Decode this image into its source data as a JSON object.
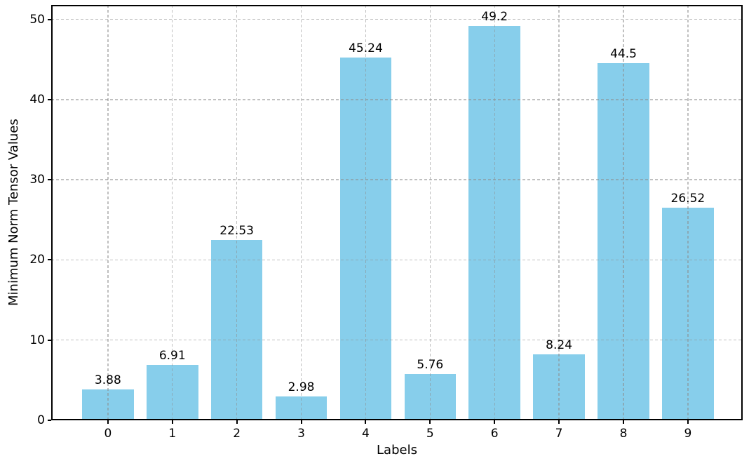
{
  "chart_data": {
    "type": "bar",
    "title": "",
    "xlabel": "Labels",
    "ylabel": "Minimum Norm Tensor Values",
    "categories": [
      "0",
      "1",
      "2",
      "3",
      "4",
      "5",
      "6",
      "7",
      "8",
      "9"
    ],
    "values": [
      3.88,
      6.91,
      22.53,
      2.98,
      45.24,
      5.76,
      49.2,
      8.24,
      44.5,
      26.52
    ],
    "bar_value_labels": [
      "3.88",
      "6.91",
      "22.53",
      "2.98",
      "45.24",
      "5.76",
      "49.2",
      "8.24",
      "44.5",
      "26.52"
    ],
    "yticks": [
      0,
      10,
      20,
      30,
      40,
      50
    ],
    "ytick_labels": [
      "0",
      "10",
      "20",
      "30",
      "40",
      "50"
    ],
    "ylim": [
      0,
      51.8
    ],
    "xlim": [
      -0.88,
      9.85
    ],
    "bar_width": 0.8,
    "grid": {
      "visible": true,
      "axis": "both",
      "style": "dashed",
      "above_bars": true
    },
    "legend": "none",
    "colors": {
      "bar_fill": "#87CEEB",
      "grid": "#8c8c8c",
      "axis": "#000000",
      "text": "#000000",
      "background": "#ffffff"
    }
  }
}
